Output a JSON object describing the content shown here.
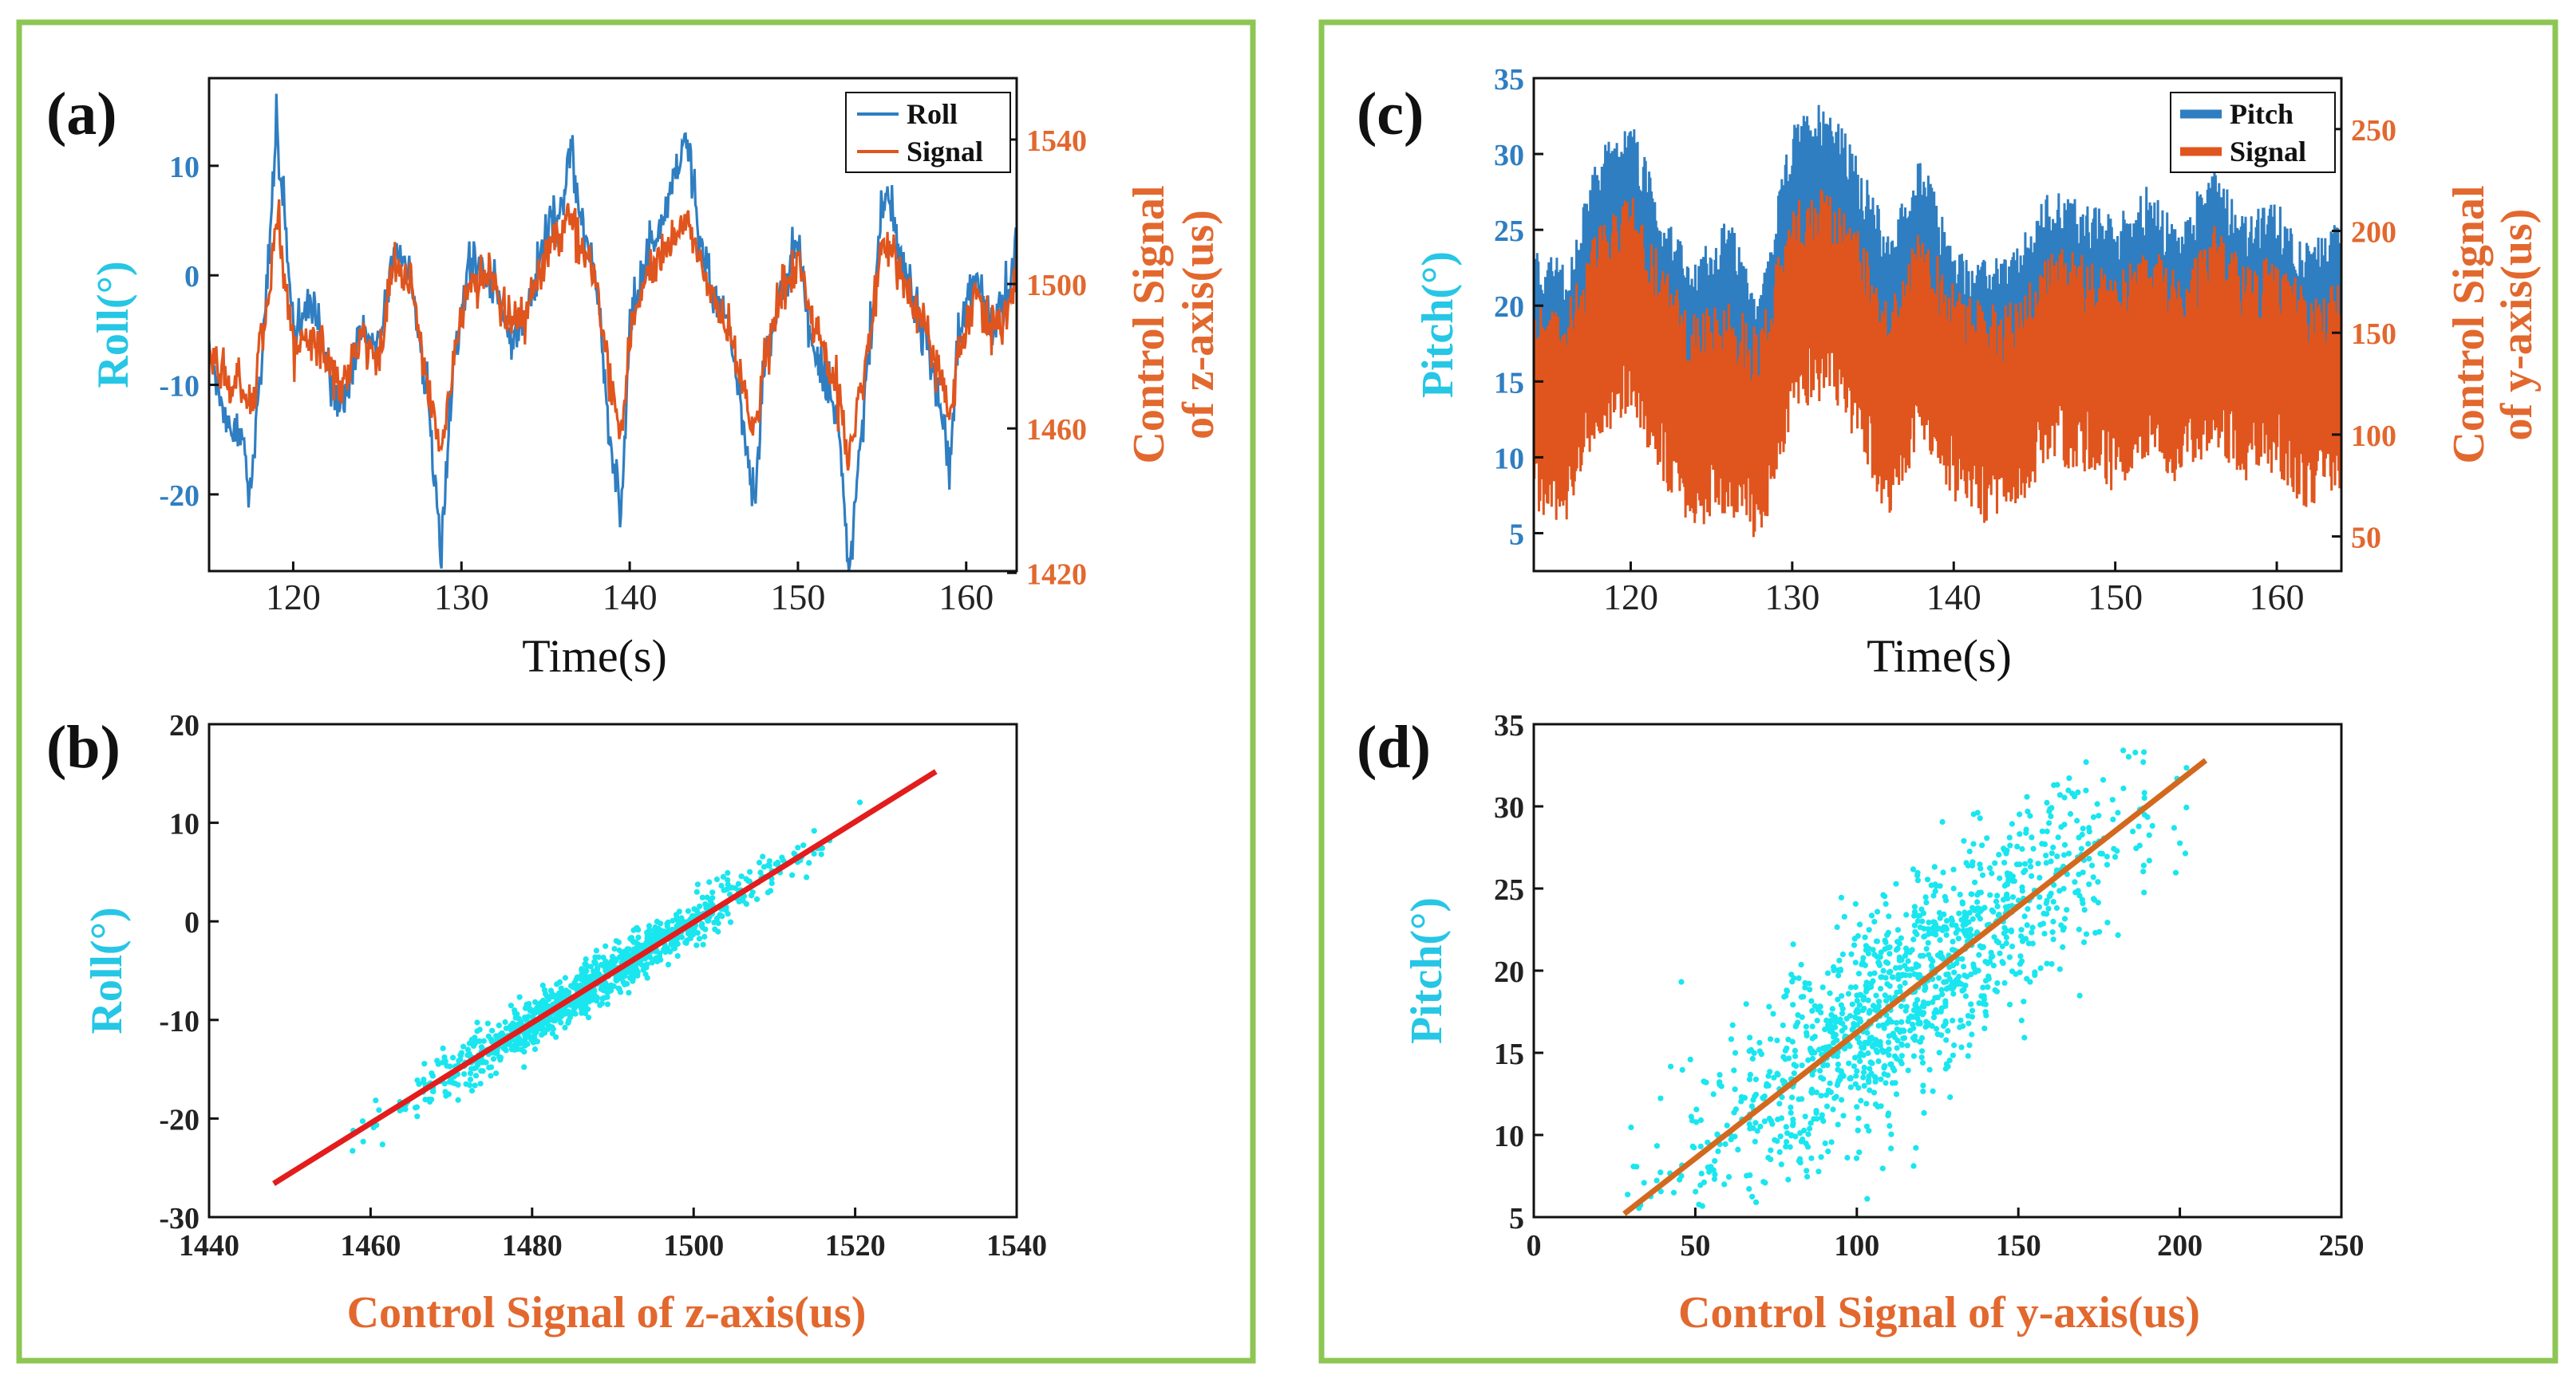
{
  "colors": {
    "panel_border": "#8dc653",
    "roll_blue": "#2f7ec1",
    "signal_orange": "#e0551d",
    "axis_orange": "#e2682e",
    "pitch_blue": "#2f7ec1",
    "axis_cyan": "#26c6e5",
    "scatter_cyan": "#19e6ef",
    "fit_red": "#e31c1c",
    "fit_orange": "#d2691e"
  },
  "chart_data": [
    {
      "id": "a",
      "type": "line",
      "panel_label": "(a)",
      "xlabel": "Time(s)",
      "ylabel_left": "Roll(°)",
      "ylabel_right_line1": "Control Signal",
      "ylabel_right_line2": "of z-axis(us)",
      "xlim": [
        115,
        163
      ],
      "ylim_left": [
        -27,
        18
      ],
      "ylim_right": [
        1420.5,
        1557
      ],
      "x_ticks": [
        120,
        130,
        140,
        150,
        160
      ],
      "y_ticks_left": [
        -20,
        -10,
        0,
        10
      ],
      "y_ticks_right": [
        1420,
        1460,
        1500,
        1540
      ],
      "legend_position": "top-right",
      "series": [
        {
          "name": "Roll",
          "axis": "left",
          "x": [
            115,
            116,
            117,
            117.5,
            118,
            118.5,
            119,
            119.5,
            120,
            121,
            122,
            123,
            124,
            125,
            126,
            127,
            128,
            128.8,
            129.5,
            130.5,
            132,
            133,
            134,
            135,
            135.8,
            136.5,
            137,
            138,
            138.8,
            139.5,
            140,
            141,
            142,
            142.8,
            143.5,
            144,
            145,
            146,
            146.8,
            147.5,
            148,
            149,
            150,
            150.8,
            151.5,
            152,
            152.5,
            153,
            153.8,
            154.5,
            155,
            155.5,
            156.5,
            157.5,
            158.5,
            159,
            159.5,
            160.5,
            161.5,
            162.5,
            163
          ],
          "values": [
            -7,
            -13,
            -15,
            -20,
            -10,
            0,
            13.5,
            5,
            -5,
            -2,
            -8,
            -12,
            -5,
            -7,
            2,
            0,
            -12,
            -25,
            -8,
            1,
            0,
            -6,
            -3,
            4,
            5,
            12,
            6,
            0,
            -15,
            -22,
            -5,
            2,
            5,
            10,
            12,
            5,
            -2,
            -5,
            -15,
            -20,
            -8,
            -2,
            3,
            -6,
            -9,
            -12,
            -15,
            -27,
            -14,
            -3,
            8,
            6,
            0,
            -5,
            -12,
            -18,
            -6,
            0,
            -5,
            -2,
            3
          ]
        },
        {
          "name": "Signal",
          "axis": "right",
          "x": [
            115,
            116,
            117,
            117.5,
            118,
            118.5,
            119,
            119.5,
            120,
            121,
            122,
            123,
            124,
            125,
            126,
            127,
            128,
            128.8,
            129.5,
            130.5,
            132,
            133,
            134,
            135,
            135.8,
            136.5,
            137,
            138,
            138.8,
            139.5,
            140,
            141,
            142,
            142.8,
            143.5,
            144,
            145,
            146,
            146.8,
            147.5,
            148,
            149,
            150,
            150.8,
            151.5,
            152,
            152.5,
            153,
            153.8,
            154.5,
            155,
            155.5,
            156.5,
            157.5,
            158.5,
            159,
            159.5,
            160.5,
            161.5,
            162.5,
            163
          ],
          "values": [
            1480,
            1475,
            1470,
            1462,
            1480,
            1495,
            1520,
            1500,
            1482,
            1486,
            1478,
            1472,
            1484,
            1480,
            1505,
            1500,
            1470,
            1455,
            1478,
            1502,
            1500,
            1488,
            1493,
            1508,
            1512,
            1522,
            1513,
            1500,
            1474,
            1458,
            1486,
            1503,
            1508,
            1515,
            1518,
            1508,
            1495,
            1485,
            1470,
            1458,
            1478,
            1497,
            1506,
            1490,
            1483,
            1474,
            1470,
            1452,
            1472,
            1493,
            1512,
            1510,
            1500,
            1488,
            1473,
            1462,
            1482,
            1498,
            1488,
            1492,
            1503
          ]
        }
      ]
    },
    {
      "id": "b",
      "type": "scatter",
      "panel_label": "(b)",
      "xlabel": "Control Signal of z-axis(us)",
      "ylabel": "Roll(°)",
      "xlim": [
        1440,
        1540
      ],
      "ylim": [
        -30,
        20
      ],
      "x_ticks": [
        1440,
        1460,
        1480,
        1500,
        1520,
        1540
      ],
      "y_ticks": [
        -30,
        -20,
        -10,
        0,
        10,
        20
      ],
      "fit_line": {
        "x": [
          1448,
          1530
        ],
        "y": [
          -26.6,
          15.2
        ]
      },
      "scatter_spread": 1.2,
      "scatter_count": 1100
    },
    {
      "id": "c",
      "type": "line",
      "panel_label": "(c)",
      "xlabel": "Time(s)",
      "ylabel_left": "Pitch(°)",
      "ylabel_right_line1": "Control Signal",
      "ylabel_right_line2": "of y-axis(us)",
      "xlim": [
        114,
        164
      ],
      "ylim_left": [
        2.5,
        35
      ],
      "ylim_right": [
        33,
        275
      ],
      "x_ticks": [
        120,
        130,
        140,
        150,
        160
      ],
      "y_ticks_left": [
        5,
        10,
        15,
        20,
        25,
        30,
        35
      ],
      "y_ticks_right": [
        50,
        100,
        150,
        200,
        250
      ],
      "legend_position": "top-right",
      "series": [
        {
          "name": "Pitch",
          "axis": "left",
          "x": [
            114,
            116,
            118,
            120,
            122,
            124,
            126,
            128,
            130,
            132,
            134,
            136,
            138,
            140,
            142,
            144,
            146,
            148,
            150,
            152,
            154,
            156,
            158,
            160,
            162,
            164
          ],
          "values": [
            18,
            17,
            24,
            27,
            20,
            17,
            20,
            15,
            26,
            28,
            24,
            19,
            24,
            18,
            17,
            18,
            22,
            21,
            20,
            22,
            19,
            24,
            20,
            21,
            18,
            20
          ]
        },
        {
          "name": "Signal",
          "axis": "right",
          "x": [
            114,
            116,
            118,
            120,
            122,
            124,
            126,
            128,
            130,
            132,
            134,
            136,
            138,
            140,
            142,
            144,
            146,
            148,
            150,
            152,
            154,
            156,
            158,
            160,
            162,
            164
          ],
          "values": [
            115,
            110,
            150,
            165,
            130,
            105,
            115,
            100,
            160,
            170,
            150,
            110,
            150,
            120,
            110,
            115,
            140,
            135,
            125,
            140,
            125,
            150,
            130,
            135,
            115,
            125
          ]
        }
      ]
    },
    {
      "id": "d",
      "type": "scatter",
      "panel_label": "(d)",
      "xlabel": "Control Signal of y-axis(us)",
      "ylabel": "Pitch(°)",
      "xlim": [
        0,
        250
      ],
      "ylim": [
        5,
        35
      ],
      "x_ticks": [
        0,
        50,
        100,
        150,
        200,
        250
      ],
      "y_ticks": [
        5,
        10,
        15,
        20,
        25,
        30,
        35
      ],
      "fit_line": {
        "x": [
          28,
          208
        ],
        "y": [
          5.2,
          32.8
        ]
      },
      "scatter_spread": 3.2,
      "scatter_count": 1300
    }
  ]
}
